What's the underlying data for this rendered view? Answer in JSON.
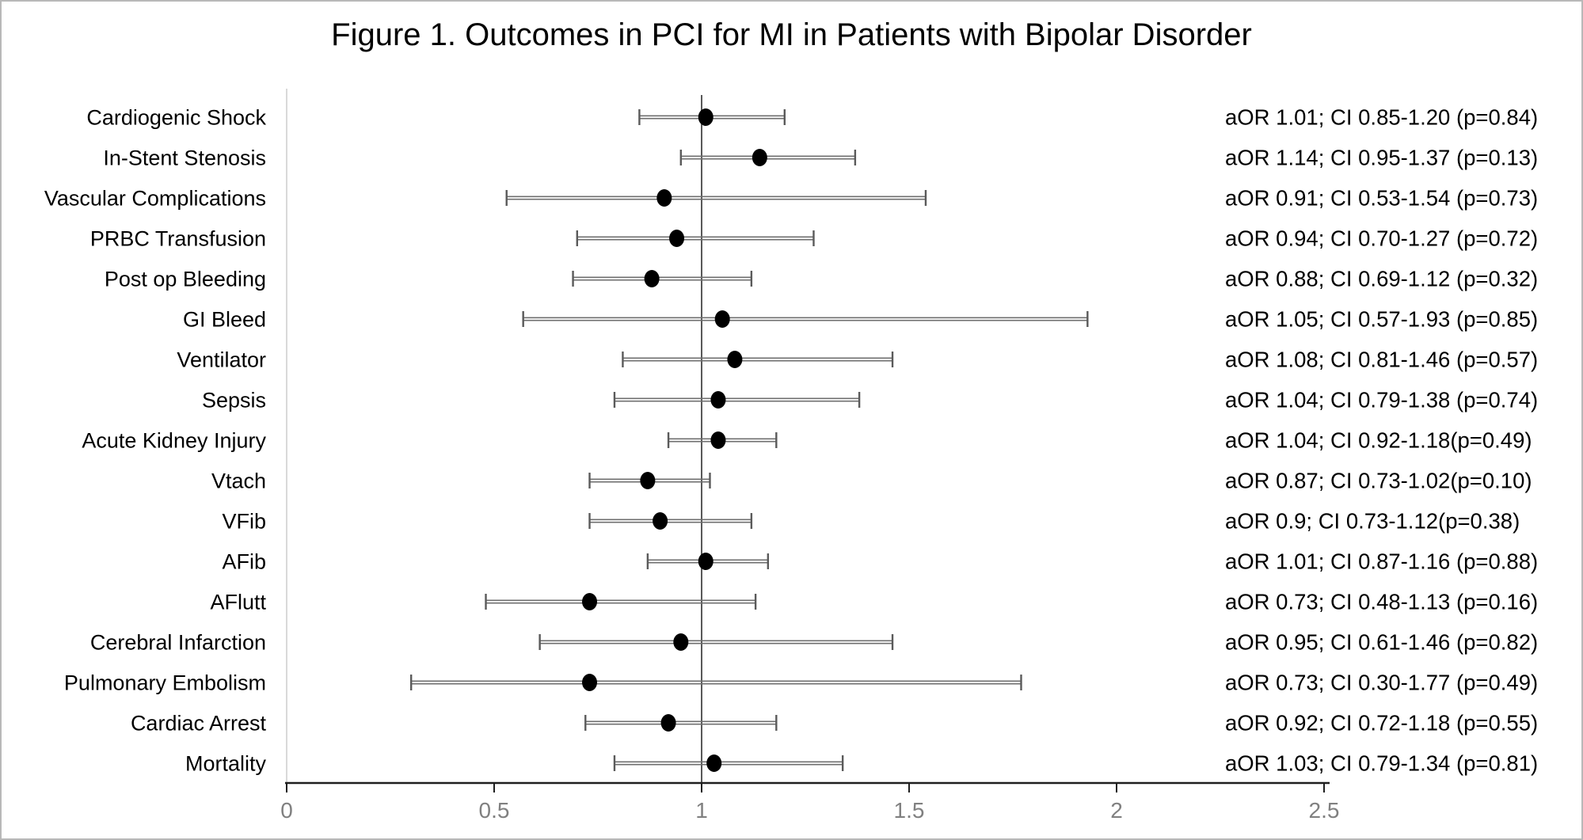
{
  "chart_data": {
    "type": "scatter",
    "subtype": "forest-plot",
    "title": "Figure 1. Outcomes in PCI for MI in Patients with Bipolar Disorder",
    "xlabel": "",
    "ylabel": "",
    "xlim": [
      0,
      2.5
    ],
    "x_tick_values": [
      0,
      0.5,
      1,
      1.5,
      2,
      2.5
    ],
    "x_tick_labels": [
      "0",
      "0.5",
      "1",
      "1.5",
      "2",
      "2.5"
    ],
    "reference_line_x": 1,
    "grid": false,
    "legend_position": "none",
    "rows": [
      {
        "label": "Cardiogenic Shock",
        "aOR": 1.01,
        "ci_low": 0.85,
        "ci_high": 1.2,
        "p": "0.84",
        "annotation": "aOR 1.01; CI 0.85-1.20 (p=0.84)"
      },
      {
        "label": "In-Stent Stenosis",
        "aOR": 1.14,
        "ci_low": 0.95,
        "ci_high": 1.37,
        "p": "0.13",
        "annotation": "aOR 1.14; CI 0.95-1.37 (p=0.13)"
      },
      {
        "label": "Vascular Complications",
        "aOR": 0.91,
        "ci_low": 0.53,
        "ci_high": 1.54,
        "p": "0.73",
        "annotation": "aOR 0.91; CI 0.53-1.54 (p=0.73)"
      },
      {
        "label": "PRBC Transfusion",
        "aOR": 0.94,
        "ci_low": 0.7,
        "ci_high": 1.27,
        "p": "0.72",
        "annotation": "aOR 0.94; CI 0.70-1.27 (p=0.72)"
      },
      {
        "label": "Post op Bleeding",
        "aOR": 0.88,
        "ci_low": 0.69,
        "ci_high": 1.12,
        "p": "0.32",
        "annotation": "aOR 0.88; CI 0.69-1.12 (p=0.32)"
      },
      {
        "label": "GI Bleed",
        "aOR": 1.05,
        "ci_low": 0.57,
        "ci_high": 1.93,
        "p": "0.85",
        "annotation": "aOR 1.05; CI 0.57-1.93 (p=0.85)"
      },
      {
        "label": "Ventilator",
        "aOR": 1.08,
        "ci_low": 0.81,
        "ci_high": 1.46,
        "p": "0.57",
        "annotation": "aOR 1.08; CI 0.81-1.46 (p=0.57)"
      },
      {
        "label": "Sepsis",
        "aOR": 1.04,
        "ci_low": 0.79,
        "ci_high": 1.38,
        "p": "0.74",
        "annotation": "aOR 1.04; CI 0.79-1.38 (p=0.74)"
      },
      {
        "label": "Acute Kidney Injury",
        "aOR": 1.04,
        "ci_low": 0.92,
        "ci_high": 1.18,
        "p": "0.49",
        "annotation": "aOR 1.04; CI 0.92-1.18(p=0.49)"
      },
      {
        "label": "Vtach",
        "aOR": 0.87,
        "ci_low": 0.73,
        "ci_high": 1.02,
        "p": "0.10",
        "annotation": "aOR 0.87; CI 0.73-1.02(p=0.10)"
      },
      {
        "label": "VFib",
        "aOR": 0.9,
        "ci_low": 0.73,
        "ci_high": 1.12,
        "p": "0.38",
        "annotation": "aOR 0.9; CI 0.73-1.12(p=0.38)"
      },
      {
        "label": "AFib",
        "aOR": 1.01,
        "ci_low": 0.87,
        "ci_high": 1.16,
        "p": "0.88",
        "annotation": "aOR 1.01; CI 0.87-1.16 (p=0.88)"
      },
      {
        "label": "AFlutt",
        "aOR": 0.73,
        "ci_low": 0.48,
        "ci_high": 1.13,
        "p": "0.16",
        "annotation": "aOR 0.73; CI 0.48-1.13 (p=0.16)"
      },
      {
        "label": "Cerebral Infarction",
        "aOR": 0.95,
        "ci_low": 0.61,
        "ci_high": 1.46,
        "p": "0.82",
        "annotation": "aOR 0.95; CI 0.61-1.46 (p=0.82)"
      },
      {
        "label": "Pulmonary Embolism",
        "aOR": 0.73,
        "ci_low": 0.3,
        "ci_high": 1.77,
        "p": "0.49",
        "annotation": "aOR 0.73; CI 0.30-1.77 (p=0.49)"
      },
      {
        "label": "Cardiac Arrest",
        "aOR": 0.92,
        "ci_low": 0.72,
        "ci_high": 1.18,
        "p": "0.55",
        "annotation": "aOR 0.92; CI 0.72-1.18 (p=0.55)"
      },
      {
        "label": "Mortality",
        "aOR": 1.03,
        "ci_low": 0.79,
        "ci_high": 1.34,
        "p": "0.81",
        "annotation": "aOR 1.03; CI 0.79-1.34 (p=0.81)"
      }
    ],
    "colors": {
      "marker": "#000000",
      "ci_line": "#6f6f6f",
      "ci_cap": "#5a5a5a",
      "reference_line": "#595959",
      "axis": "#1f1f1f",
      "tick_label": "#808080",
      "plot_left_border": "#d9d9d9",
      "figure_border": "#b8b8b8",
      "background": "#ffffff",
      "text": "#000000"
    }
  }
}
